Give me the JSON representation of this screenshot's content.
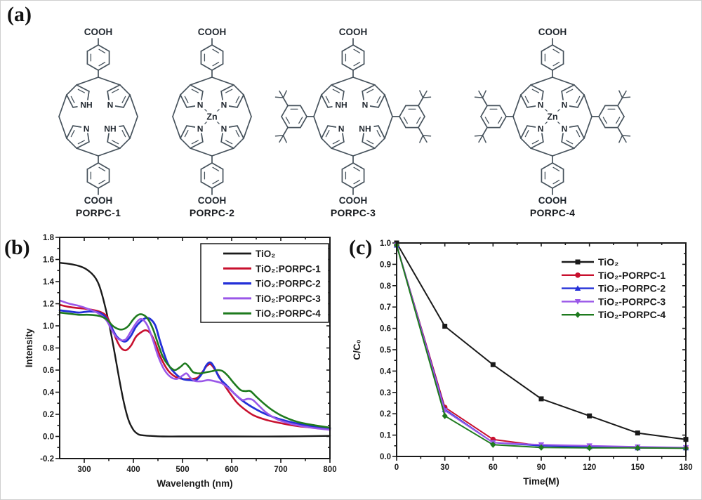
{
  "panels": {
    "a": "(a)",
    "b": "(b)",
    "c": "(c)"
  },
  "structures": {
    "bond_color": "#46525c",
    "text_color": "#1f262e",
    "items": [
      {
        "name": "PORPC-1",
        "center_label": null,
        "core_labels": [
          "NH",
          "N",
          "NH",
          "N"
        ],
        "side_groups": false,
        "top_label": "COOH",
        "bottom_label": "COOH"
      },
      {
        "name": "PORPC-2",
        "center_label": "Zn",
        "core_labels": [
          "N",
          "N",
          "N",
          "N"
        ],
        "side_groups": false,
        "top_label": "COOH",
        "bottom_label": "COOH"
      },
      {
        "name": "PORPC-3",
        "center_label": null,
        "core_labels": [
          "NH",
          "N",
          "NH",
          "N"
        ],
        "side_groups": true,
        "top_label": "COOH",
        "bottom_label": "COOH"
      },
      {
        "name": "PORPC-4",
        "center_label": "Zn",
        "core_labels": [
          "N",
          "N",
          "N",
          "N"
        ],
        "side_groups": true,
        "top_label": "COOH",
        "bottom_label": "COOH"
      }
    ]
  },
  "chart_data": [
    {
      "id": "uv-vis-spectra",
      "type": "line",
      "xlabel": "Wavelength (nm)",
      "ylabel": "Intensity",
      "xlim": [
        250,
        800
      ],
      "ylim": [
        -0.2,
        1.8
      ],
      "xticks": [
        300,
        400,
        500,
        600,
        700,
        800
      ],
      "xtick_labels": [
        "300",
        "400",
        "500",
        "600",
        "700",
        "800"
      ],
      "yticks": [
        -0.2,
        0,
        0.2,
        0.4,
        0.6,
        0.8,
        1.0,
        1.2,
        1.4,
        1.6,
        1.8
      ],
      "ytick_labels": [
        "-0.2",
        "0.0",
        "0.2",
        "0.4",
        "0.6",
        "0.8",
        "1.0",
        "1.2",
        "1.4",
        "1.6",
        "1.8"
      ],
      "xminor": 50,
      "yminor": 0.1,
      "grid": false,
      "legend": {
        "position": "top-right",
        "boxed": true
      },
      "series": [
        {
          "name": "TiO₂",
          "color": "#1a1a1a",
          "marker": null,
          "smooth": true,
          "lw": 2.4,
          "x": [
            250,
            270,
            290,
            305,
            320,
            330,
            340,
            350,
            360,
            370,
            380,
            390,
            400,
            410,
            420,
            435,
            460,
            500,
            600,
            700,
            800
          ],
          "y": [
            1.57,
            1.56,
            1.54,
            1.51,
            1.45,
            1.37,
            1.22,
            1.03,
            0.8,
            0.55,
            0.32,
            0.15,
            0.06,
            0.02,
            0.01,
            0.005,
            0.0,
            0.0,
            0.0,
            0.0,
            0.005
          ]
        },
        {
          "name": "TiO₂:PORPC-1",
          "color": "#c8102e",
          "marker": null,
          "smooth": true,
          "lw": 2.6,
          "x": [
            250,
            270,
            290,
            310,
            330,
            345,
            355,
            365,
            375,
            385,
            395,
            405,
            415,
            425,
            435,
            445,
            455,
            470,
            485,
            500,
            515,
            530,
            540,
            550,
            558,
            568,
            580,
            595,
            610,
            625,
            645,
            670,
            700,
            740,
            800
          ],
          "y": [
            1.19,
            1.17,
            1.16,
            1.15,
            1.13,
            1.09,
            1.0,
            0.88,
            0.8,
            0.78,
            0.82,
            0.9,
            0.94,
            0.96,
            0.93,
            0.84,
            0.72,
            0.6,
            0.54,
            0.52,
            0.52,
            0.53,
            0.58,
            0.64,
            0.65,
            0.59,
            0.5,
            0.4,
            0.31,
            0.25,
            0.19,
            0.15,
            0.12,
            0.09,
            0.07
          ]
        },
        {
          "name": "TiO₂:PORPC-2",
          "color": "#2430d8",
          "marker": null,
          "smooth": true,
          "lw": 2.8,
          "x": [
            250,
            270,
            290,
            310,
            330,
            345,
            355,
            365,
            375,
            385,
            395,
            405,
            415,
            425,
            435,
            445,
            455,
            470,
            485,
            500,
            515,
            528,
            540,
            548,
            556,
            564,
            575,
            590,
            605,
            620,
            640,
            665,
            695,
            740,
            800
          ],
          "y": [
            1.14,
            1.13,
            1.12,
            1.13,
            1.12,
            1.07,
            0.99,
            0.91,
            0.87,
            0.86,
            0.91,
            0.99,
            1.04,
            1.07,
            1.06,
            1.0,
            0.85,
            0.66,
            0.57,
            0.52,
            0.51,
            0.51,
            0.57,
            0.64,
            0.67,
            0.63,
            0.53,
            0.46,
            0.39,
            0.33,
            0.27,
            0.21,
            0.16,
            0.11,
            0.07
          ]
        },
        {
          "name": "TiO₂:PORPC-3",
          "color": "#9a57e8",
          "marker": null,
          "smooth": true,
          "lw": 2.6,
          "x": [
            250,
            270,
            290,
            310,
            330,
            345,
            355,
            365,
            375,
            385,
            395,
            405,
            413,
            421,
            430,
            440,
            450,
            462,
            475,
            488,
            500,
            508,
            516,
            526,
            540,
            552,
            565,
            580,
            595,
            610,
            622,
            633,
            643,
            655,
            672,
            695,
            725,
            760,
            800
          ],
          "y": [
            1.23,
            1.2,
            1.18,
            1.15,
            1.11,
            1.05,
            0.97,
            0.9,
            0.87,
            0.88,
            0.95,
            1.02,
            1.06,
            1.05,
            0.99,
            0.87,
            0.73,
            0.61,
            0.54,
            0.52,
            0.55,
            0.57,
            0.53,
            0.5,
            0.5,
            0.51,
            0.5,
            0.48,
            0.43,
            0.37,
            0.33,
            0.34,
            0.33,
            0.28,
            0.21,
            0.15,
            0.11,
            0.08,
            0.06
          ]
        },
        {
          "name": "TiO₂:PORPC-4",
          "color": "#1e7a1e",
          "marker": null,
          "smooth": true,
          "lw": 2.6,
          "x": [
            250,
            270,
            290,
            310,
            330,
            345,
            358,
            370,
            380,
            390,
            400,
            410,
            420,
            430,
            440,
            450,
            460,
            472,
            484,
            496,
            505,
            513,
            522,
            535,
            548,
            560,
            572,
            582,
            592,
            605,
            618,
            628,
            638,
            650,
            665,
            682,
            705,
            735,
            770,
            800
          ],
          "y": [
            1.12,
            1.11,
            1.1,
            1.1,
            1.09,
            1.06,
            1.0,
            0.97,
            0.97,
            1.0,
            1.06,
            1.1,
            1.1,
            1.06,
            0.97,
            0.84,
            0.72,
            0.64,
            0.6,
            0.63,
            0.66,
            0.63,
            0.58,
            0.57,
            0.58,
            0.59,
            0.6,
            0.59,
            0.55,
            0.48,
            0.42,
            0.41,
            0.41,
            0.36,
            0.3,
            0.24,
            0.18,
            0.13,
            0.1,
            0.08
          ]
        }
      ]
    },
    {
      "id": "photodegradation",
      "type": "line",
      "xlabel": "Time(M)",
      "ylabel": "C/C₀",
      "xlim": [
        0,
        180
      ],
      "ylim": [
        0,
        1.0
      ],
      "xticks": [
        0,
        30,
        60,
        90,
        120,
        150,
        180
      ],
      "xtick_labels": [
        "0",
        "30",
        "60",
        "90",
        "120",
        "150",
        "180"
      ],
      "yticks": [
        0,
        0.1,
        0.2,
        0.3,
        0.4,
        0.5,
        0.6,
        0.7,
        0.8,
        0.9,
        1.0
      ],
      "ytick_labels": [
        "0.0",
        "0.1",
        "0.2",
        "0.3",
        "0.4",
        "0.5",
        "0.6",
        "0.7",
        "0.8",
        "0.9",
        "1.0"
      ],
      "xminor": 15,
      "yminor": 0.05,
      "grid": false,
      "legend": {
        "position": "top-right",
        "boxed": false
      },
      "series": [
        {
          "name": "TiO₂",
          "color": "#1a1a1a",
          "marker": "square",
          "smooth": false,
          "lw": 2,
          "x": [
            0,
            30,
            60,
            90,
            120,
            150,
            180
          ],
          "y": [
            1.0,
            0.61,
            0.43,
            0.27,
            0.19,
            0.11,
            0.08
          ]
        },
        {
          "name": "TiO₂-PORPC-1",
          "color": "#c8102e",
          "marker": "circle",
          "smooth": false,
          "lw": 2,
          "x": [
            0,
            30,
            60,
            90,
            120,
            150,
            180
          ],
          "y": [
            0.99,
            0.23,
            0.08,
            0.05,
            0.045,
            0.04,
            0.04
          ]
        },
        {
          "name": "TiO₂-PORPC-2",
          "color": "#2430d8",
          "marker": "triangle-up",
          "smooth": false,
          "lw": 2,
          "x": [
            0,
            30,
            60,
            90,
            120,
            150,
            180
          ],
          "y": [
            0.99,
            0.22,
            0.065,
            0.05,
            0.045,
            0.04,
            0.04
          ]
        },
        {
          "name": "TiO₂-PORPC-3",
          "color": "#9a57e8",
          "marker": "triangle-down",
          "smooth": false,
          "lw": 2,
          "x": [
            0,
            30,
            60,
            90,
            120,
            150,
            180
          ],
          "y": [
            0.99,
            0.215,
            0.065,
            0.055,
            0.05,
            0.045,
            0.042
          ]
        },
        {
          "name": "TiO₂-PORPC-4",
          "color": "#1e7a1e",
          "marker": "diamond",
          "smooth": false,
          "lw": 2,
          "x": [
            0,
            30,
            60,
            90,
            120,
            150,
            180
          ],
          "y": [
            0.99,
            0.19,
            0.055,
            0.042,
            0.04,
            0.04,
            0.038
          ]
        }
      ]
    }
  ]
}
